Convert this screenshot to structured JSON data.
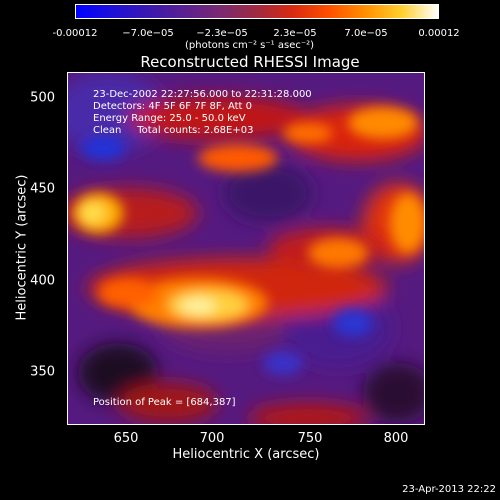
{
  "colorbar": {
    "ticks": [
      "-0.00012",
      "−7.0e−05",
      "−2.3e−05",
      "2.3e−05",
      "7.0e−05",
      "0.00012"
    ],
    "unit": "(photons cm⁻² s⁻¹ asec⁻²)"
  },
  "title": "Reconstructed RHESSI Image",
  "info": {
    "time": "23-Dec-2002 22:27:56.000 to 22:31:28.000",
    "detectors": "Detectors: 4F 5F 6F 7F 8F, Att 0",
    "energy": "Energy Range: 25.0 - 50.0 keV",
    "clean": "Clean     Total counts: 2.68E+03",
    "peak": "Position of Peak = [684,387]"
  },
  "axes": {
    "xlabel": "Heliocentric X (arcsec)",
    "ylabel": "Heliocentric Y (arcsec)",
    "xticks": [
      "650",
      "700",
      "750",
      "800"
    ],
    "yticks": [
      "500",
      "450",
      "400",
      "350"
    ]
  },
  "footer": {
    "date": "23-Apr-2013 22:22"
  }
}
